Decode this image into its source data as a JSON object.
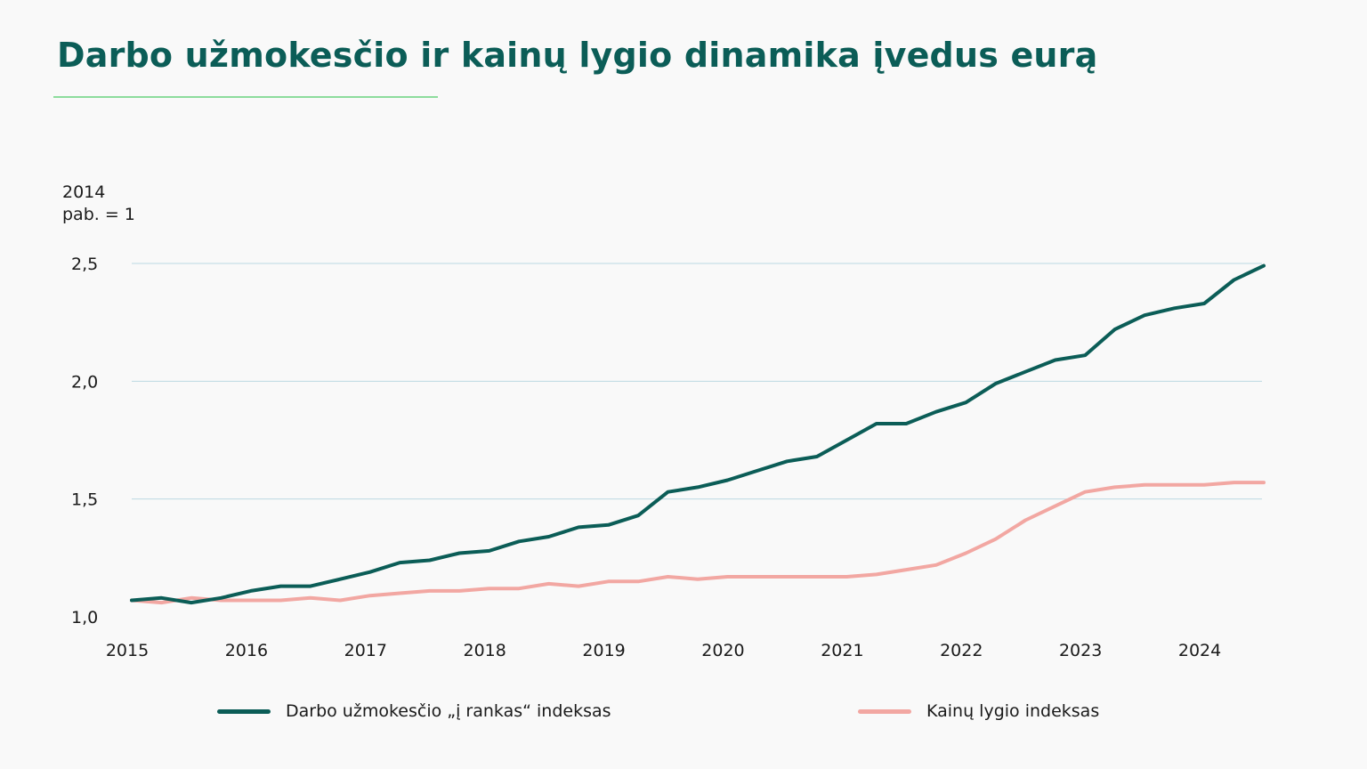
{
  "header": {
    "title": "Darbo užmokesčio ir kainų lygio dinamika įvedus eurą"
  },
  "y_unit": {
    "line1": "2014",
    "line2": "pab. =  1"
  },
  "colors": {
    "title": "#0b5d57",
    "rule": "#8ddc9d",
    "grid": "#bcd9e2",
    "wage": "#0b5d57",
    "price": "#f2a7a2"
  },
  "chart_data": {
    "type": "line",
    "title": "Darbo užmokesčio ir kainų lygio dinamika įvedus eurą",
    "ylabel": "2014 pab. =  1",
    "xlabel": "",
    "ylim": [
      1.0,
      2.5
    ],
    "xlim": [
      2015.0,
      2024.5
    ],
    "y_ticks": [
      1.0,
      1.5,
      2.0,
      2.5
    ],
    "y_tick_labels": [
      "1,0",
      "1,5",
      "2,0",
      "2,5"
    ],
    "x_ticks": [
      2015,
      2016,
      2017,
      2018,
      2019,
      2020,
      2021,
      2022,
      2023,
      2024
    ],
    "x_tick_labels": [
      "2015",
      "2016",
      "2017",
      "2018",
      "2019",
      "2020",
      "2021",
      "2022",
      "2023",
      "2024"
    ],
    "grid": true,
    "legend_position": "bottom",
    "x": [
      2015.0,
      2015.25,
      2015.5,
      2015.75,
      2016.0,
      2016.25,
      2016.5,
      2016.75,
      2017.0,
      2017.25,
      2017.5,
      2017.75,
      2018.0,
      2018.25,
      2018.5,
      2018.75,
      2019.0,
      2019.25,
      2019.5,
      2019.75,
      2020.0,
      2020.25,
      2020.5,
      2020.75,
      2021.0,
      2021.25,
      2021.5,
      2021.75,
      2022.0,
      2022.25,
      2022.5,
      2022.75,
      2023.0,
      2023.25,
      2023.5,
      2023.75,
      2024.0,
      2024.25,
      2024.5
    ],
    "series": [
      {
        "name": "Darbo užmokesčio „į rankas“ indeksas",
        "color": "#0b5d57",
        "values": [
          1.07,
          1.08,
          1.06,
          1.08,
          1.11,
          1.13,
          1.13,
          1.16,
          1.19,
          1.23,
          1.24,
          1.27,
          1.28,
          1.32,
          1.34,
          1.38,
          1.39,
          1.43,
          1.53,
          1.55,
          1.58,
          1.62,
          1.66,
          1.68,
          1.75,
          1.82,
          1.82,
          1.87,
          1.91,
          1.99,
          2.04,
          2.09,
          2.11,
          2.22,
          2.28,
          2.31,
          2.33,
          2.43,
          2.49
        ]
      },
      {
        "name": "Kainų lygio indeksas",
        "color": "#f2a7a2",
        "values": [
          1.07,
          1.06,
          1.08,
          1.07,
          1.07,
          1.07,
          1.08,
          1.07,
          1.09,
          1.1,
          1.11,
          1.11,
          1.12,
          1.12,
          1.14,
          1.13,
          1.15,
          1.15,
          1.17,
          1.16,
          1.17,
          1.17,
          1.17,
          1.17,
          1.17,
          1.18,
          1.2,
          1.22,
          1.27,
          1.33,
          1.41,
          1.47,
          1.53,
          1.55,
          1.56,
          1.56,
          1.56,
          1.57,
          1.57
        ]
      }
    ]
  }
}
